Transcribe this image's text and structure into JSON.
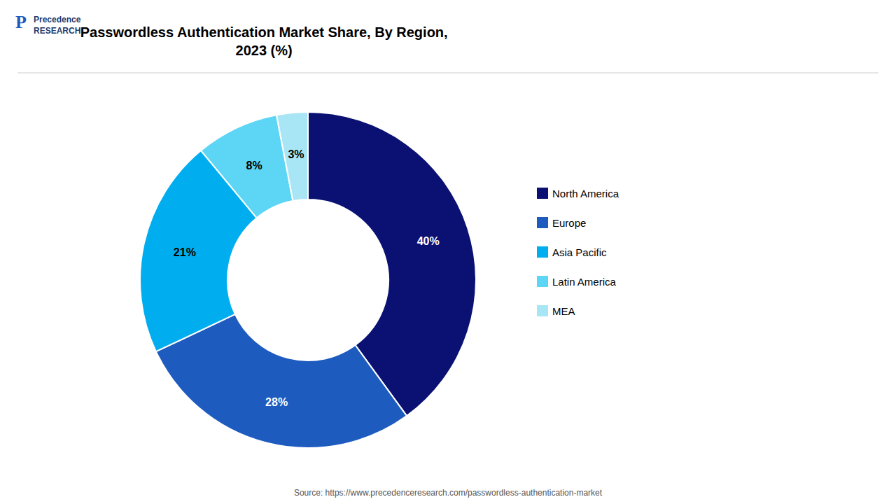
{
  "chart_data": {
    "type": "pie",
    "title": "Passwordless Authentication Market Share, By Region,\n2023 (%)",
    "categories": [
      "North America",
      "Europe",
      "Asia Pacific",
      "Latin America",
      "MEA"
    ],
    "values": [
      40,
      28,
      21,
      8,
      3
    ],
    "value_labels": [
      "40%",
      "28%",
      "21%",
      "8%",
      "3%"
    ],
    "colors": [
      "#0a1172",
      "#1e5bbf",
      "#00aeef",
      "#5dd6f5",
      "#a8e6f5"
    ],
    "data_labels": true,
    "legend": "right",
    "annotations": [
      "Source: https://www.precedenceresearch.com/passwordless-authentication-market",
      "Precedence\nRESEARCH",
      "P"
    ]
  }
}
